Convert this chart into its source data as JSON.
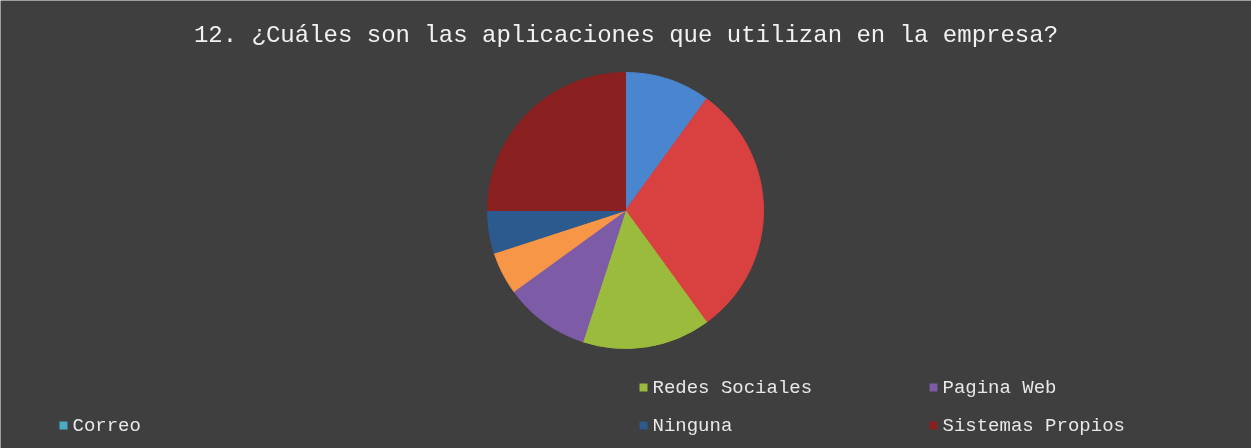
{
  "chart_data": {
    "type": "pie",
    "title": "12. ¿Cuáles son las aplicaciones que utilizan en la empresa?",
    "categories": [
      null,
      null,
      "Redes Sociales",
      "Pagina Web",
      "Correo",
      null,
      "Ninguna",
      "Sistemas Propios"
    ],
    "values": [
      10,
      30,
      15,
      10,
      0,
      5,
      5,
      25
    ],
    "colors": [
      "#4a86d0",
      "#d94040",
      "#9bbb3c",
      "#7d5ba6",
      "#4bacc6",
      "#f79646",
      "#2c5a8f",
      "#8b2020"
    ],
    "legend": "bottom"
  }
}
